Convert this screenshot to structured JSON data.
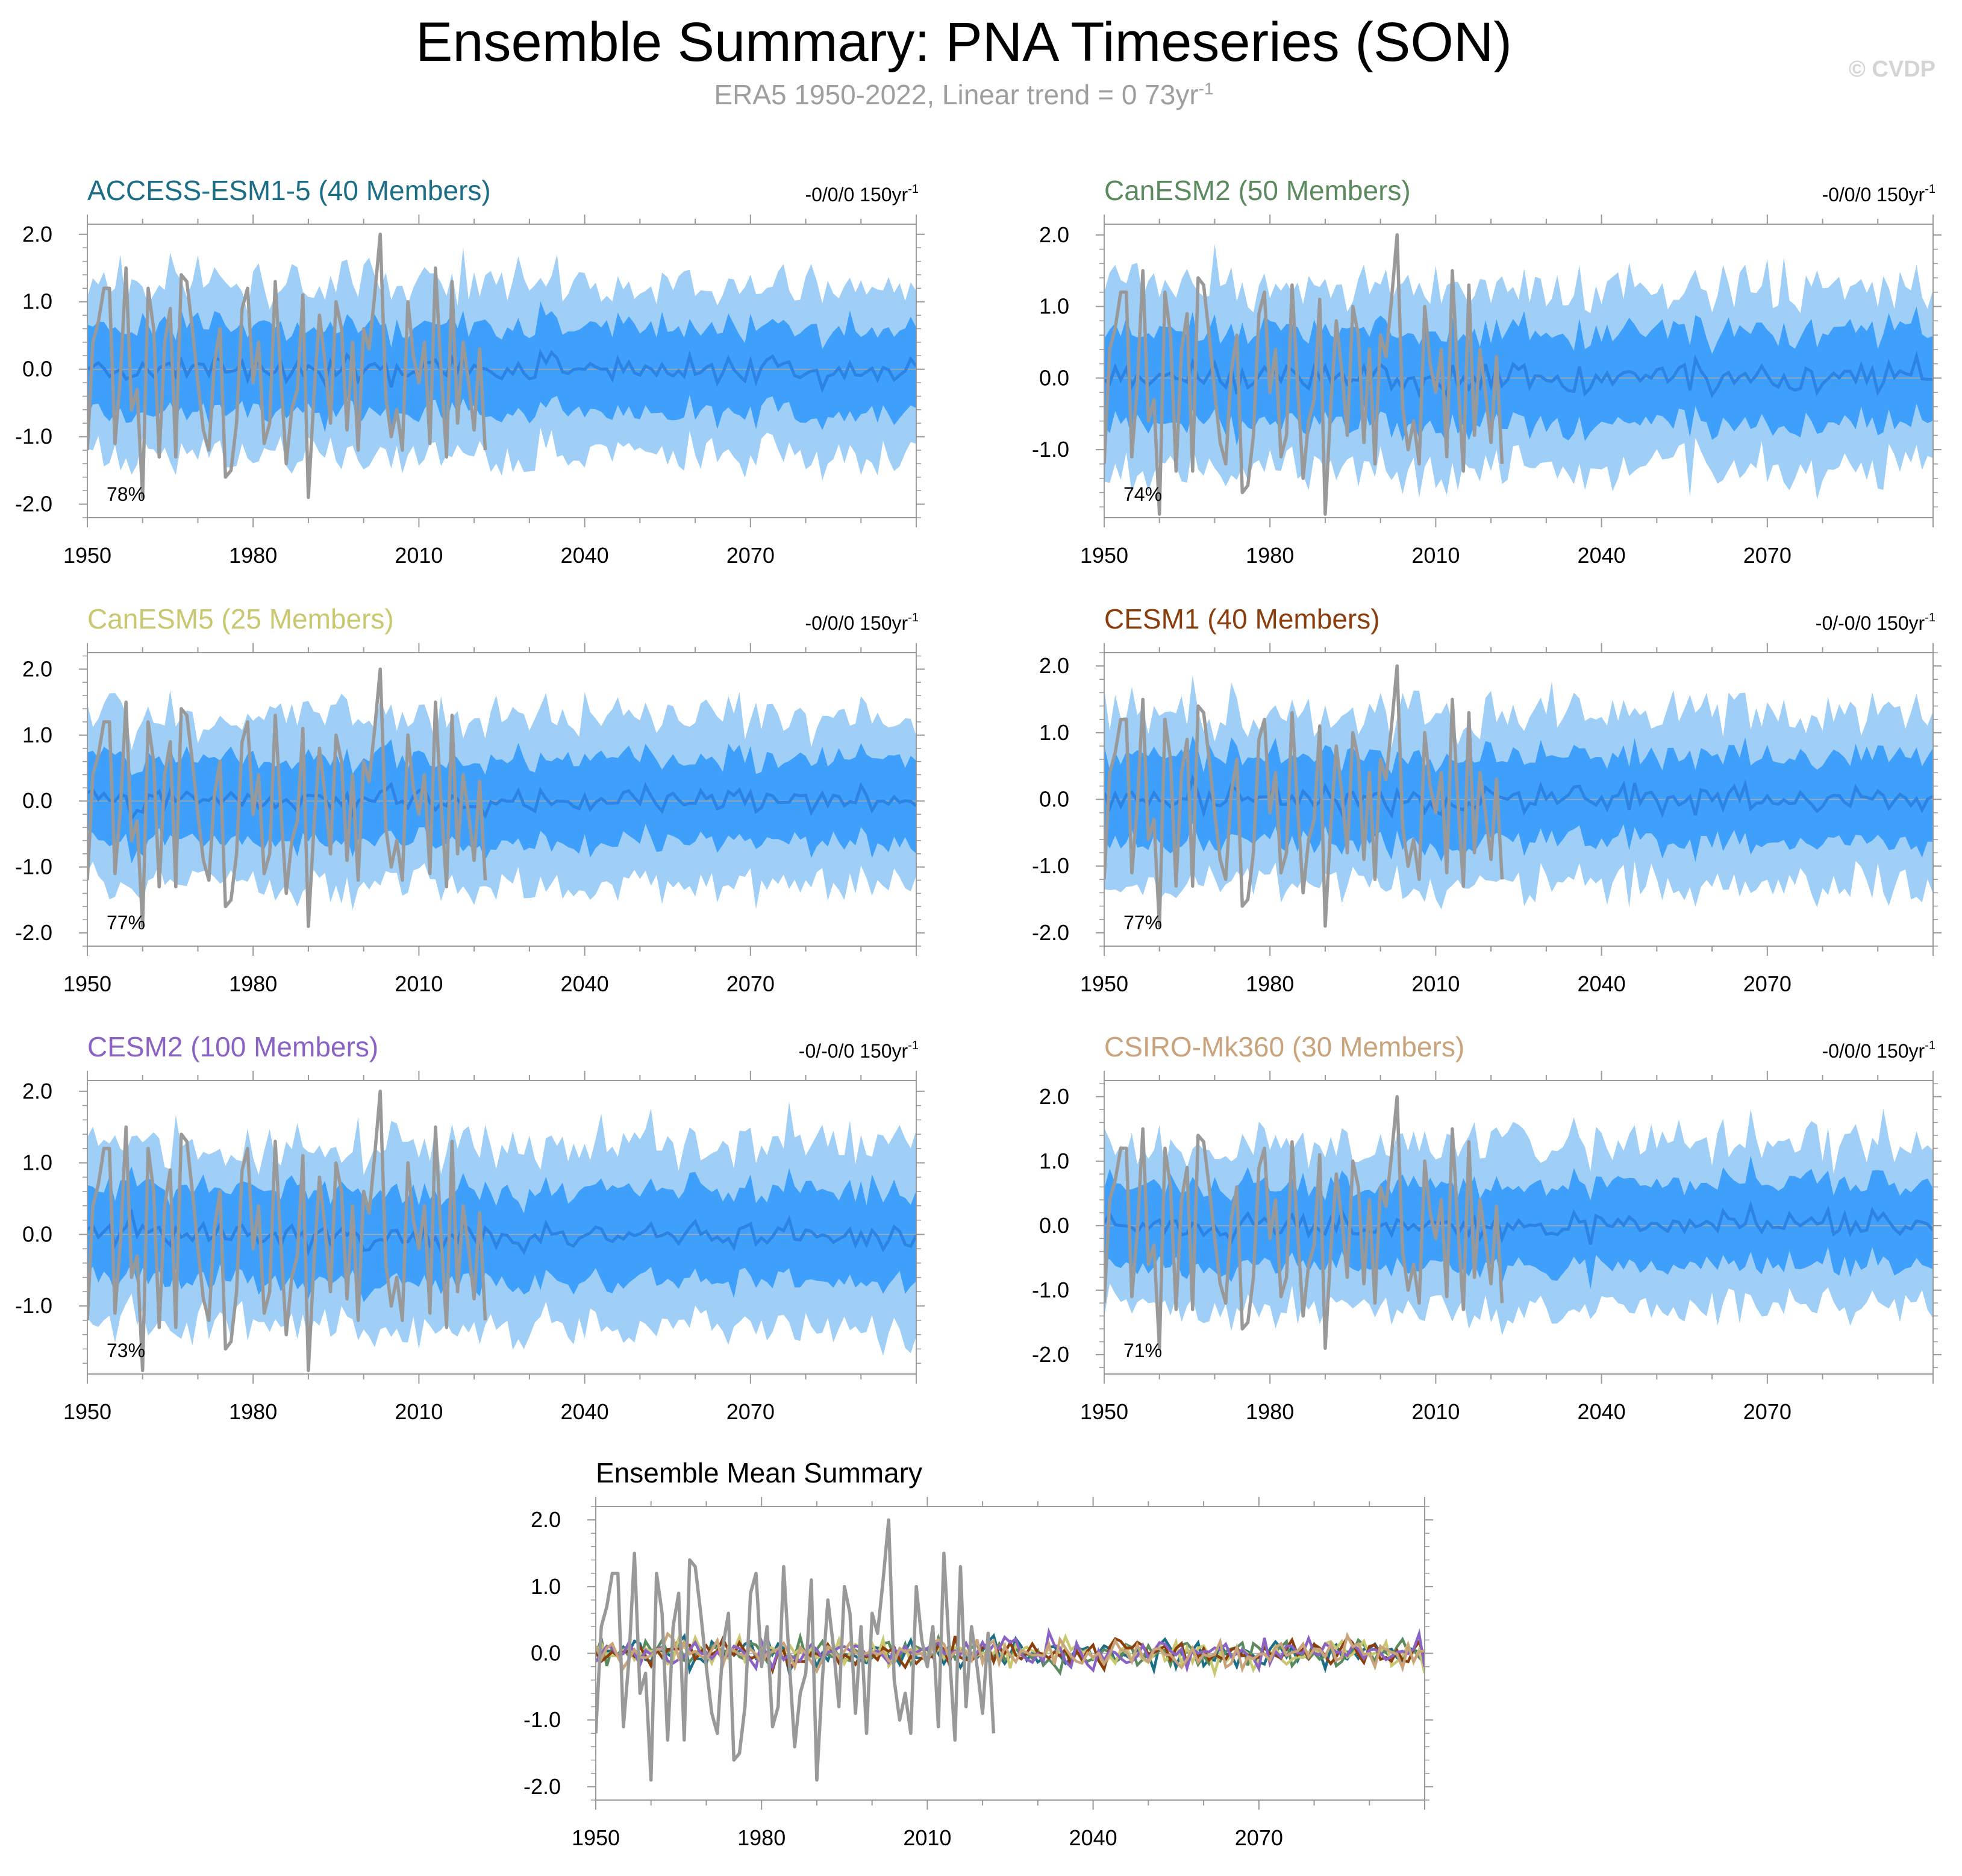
{
  "header": {
    "title": "Ensemble Summary: PNA Timeseries (SON)",
    "subtitle_main": "ERA5 1950-2022, Linear trend = 0 73yr",
    "subtitle_sup": "-1",
    "watermark": "© CVDP"
  },
  "colors": {
    "light_band": "#9fcff7",
    "dark_band": "#3fa0fb",
    "ensemble_mean": "#2c83e3",
    "observations": "#999999"
  },
  "chart_data": [
    {
      "type": "line",
      "title": "ACCESS-ESM1-5 (40 Members)",
      "title_color": "#1b6e86",
      "trend_label": "-0/0/0 150yr",
      "trend_sup": "-1",
      "percent_label": "78%",
      "xlim": [
        1950,
        2100
      ],
      "ylim": [
        -2.2,
        2.15
      ],
      "yticks": [
        -2.0,
        -1.0,
        0.0,
        1.0,
        2.0
      ],
      "ytick_labels": [
        "-2.0",
        "-1.0",
        "0.0",
        "1.0",
        "2.0"
      ],
      "xticks": [
        1950,
        1980,
        2010,
        2040,
        2070
      ],
      "xtick_labels": [
        "1950",
        "1980",
        "2010",
        "2040",
        "2070"
      ],
      "series": [
        {
          "name": "inner range",
          "x_range": [
            1950,
            2100
          ],
          "description": "ensemble spread bands"
        },
        {
          "name": "ensemble mean",
          "values_approx": "near 0 (about -0.3 to 0.4)"
        },
        {
          "name": "ERA5",
          "x_range": [
            1950,
            2022
          ]
        }
      ]
    },
    {
      "type": "line",
      "title": "CanESM2 (50 Members)",
      "title_color": "#5b8a5e",
      "trend_label": "-0/0/0 150yr",
      "trend_sup": "-1",
      "percent_label": "74%",
      "xlim": [
        1950,
        2100
      ],
      "ylim": [
        -1.95,
        2.15
      ],
      "yticks": [
        -1.0,
        0.0,
        1.0,
        2.0
      ],
      "ytick_labels": [
        "-1.0",
        "0.0",
        "1.0",
        "2.0"
      ],
      "xticks": [
        1950,
        1980,
        2010,
        2040,
        2070
      ],
      "xtick_labels": [
        "1950",
        "1980",
        "2010",
        "2040",
        "2070"
      ]
    },
    {
      "type": "line",
      "title": "CanESM5 (25 Members)",
      "title_color": "#c9c76f",
      "trend_label": "-0/0/0 150yr",
      "trend_sup": "-1",
      "percent_label": "77%",
      "xlim": [
        1950,
        2100
      ],
      "ylim": [
        -2.2,
        2.25
      ],
      "yticks": [
        -2.0,
        -1.0,
        0.0,
        1.0,
        2.0
      ],
      "ytick_labels": [
        "-2.0",
        "-1.0",
        "0.0",
        "1.0",
        "2.0"
      ],
      "xticks": [
        1950,
        1980,
        2010,
        2040,
        2070
      ],
      "xtick_labels": [
        "1950",
        "1980",
        "2010",
        "2040",
        "2070"
      ]
    },
    {
      "type": "line",
      "title": "CESM1 (40 Members)",
      "title_color": "#8b3e0c",
      "trend_label": "-0/-0/0 150yr",
      "trend_sup": "-1",
      "percent_label": "77%",
      "xlim": [
        1950,
        2100
      ],
      "ylim": [
        -2.2,
        2.2
      ],
      "yticks": [
        -2.0,
        -1.0,
        0.0,
        1.0,
        2.0
      ],
      "ytick_labels": [
        "-2.0",
        "-1.0",
        "0.0",
        "1.0",
        "2.0"
      ],
      "xticks": [
        1950,
        1980,
        2010,
        2040,
        2070
      ],
      "xtick_labels": [
        "1950",
        "1980",
        "2010",
        "2040",
        "2070"
      ]
    },
    {
      "type": "line",
      "title": "CESM2 (100 Members)",
      "title_color": "#8a62c6",
      "trend_label": "-0/-0/0 150yr",
      "trend_sup": "-1",
      "percent_label": "73%",
      "xlim": [
        1950,
        2100
      ],
      "ylim": [
        -1.95,
        2.15
      ],
      "yticks": [
        -1.0,
        0.0,
        1.0,
        2.0
      ],
      "ytick_labels": [
        "-1.0",
        "0.0",
        "1.0",
        "2.0"
      ],
      "xticks": [
        1950,
        1980,
        2010,
        2040,
        2070
      ],
      "xtick_labels": [
        "1950",
        "1980",
        "2010",
        "2040",
        "2070"
      ]
    },
    {
      "type": "line",
      "title": "CSIRO-Mk360 (30 Members)",
      "title_color": "#c9a37a",
      "trend_label": "-0/0/0 150yr",
      "trend_sup": "-1",
      "percent_label": "71%",
      "xlim": [
        1950,
        2100
      ],
      "ylim": [
        -2.3,
        2.25
      ],
      "yticks": [
        -2.0,
        -1.0,
        0.0,
        1.0,
        2.0
      ],
      "ytick_labels": [
        "-2.0",
        "-1.0",
        "0.0",
        "1.0",
        "2.0"
      ],
      "xticks": [
        1950,
        1980,
        2010,
        2040,
        2070
      ],
      "xtick_labels": [
        "1950",
        "1980",
        "2010",
        "2040",
        "2070"
      ]
    },
    {
      "type": "line",
      "title": "Ensemble Mean Summary",
      "title_color": "#000000",
      "xlim": [
        1950,
        2100
      ],
      "ylim": [
        -2.2,
        2.2
      ],
      "yticks": [
        -2.0,
        -1.0,
        0.0,
        1.0,
        2.0
      ],
      "ytick_labels": [
        "-2.0",
        "-1.0",
        "0.0",
        "1.0",
        "2.0"
      ],
      "xticks": [
        1950,
        1980,
        2010,
        2040,
        2070
      ],
      "xtick_labels": [
        "1950",
        "1980",
        "2010",
        "2040",
        "2070"
      ],
      "series_colors": [
        "#1b6e86",
        "#5b8a5e",
        "#c9c76f",
        "#8b3e0c",
        "#8a62c6",
        "#c9a37a"
      ]
    }
  ],
  "observations_era5": {
    "name": "ERA5 PNA (SON)",
    "x": [
      1950,
      1951,
      1952,
      1953,
      1954,
      1955,
      1956,
      1957,
      1958,
      1959,
      1960,
      1961,
      1962,
      1963,
      1964,
      1965,
      1966,
      1967,
      1968,
      1969,
      1970,
      1971,
      1972,
      1973,
      1974,
      1975,
      1976,
      1977,
      1978,
      1979,
      1980,
      1981,
      1982,
      1983,
      1984,
      1985,
      1986,
      1987,
      1988,
      1989,
      1990,
      1991,
      1992,
      1993,
      1994,
      1995,
      1996,
      1997,
      1998,
      1999,
      2000,
      2001,
      2002,
      2003,
      2004,
      2005,
      2006,
      2007,
      2008,
      2009,
      2010,
      2011,
      2012,
      2013,
      2014,
      2015,
      2016,
      2017,
      2018,
      2019,
      2020,
      2021,
      2022
    ],
    "values": [
      -1.2,
      0.4,
      0.7,
      1.2,
      1.2,
      -1.1,
      -0.1,
      1.5,
      -0.6,
      -0.3,
      -1.9,
      1.2,
      0.6,
      -1.3,
      0.4,
      0.9,
      -1.3,
      1.4,
      1.3,
      0.6,
      -0.2,
      -0.9,
      -1.2,
      0.1,
      0.6,
      -1.6,
      -1.5,
      -0.8,
      0.9,
      1.2,
      -0.2,
      0.4,
      -1.1,
      -0.8,
      1.3,
      -0.1,
      -1.4,
      -0.6,
      -0.3,
      1.1,
      -1.9,
      -0.4,
      0.8,
      0.1,
      -0.8,
      1.0,
      0.6,
      -0.9,
      0.4,
      -1.2,
      0.6,
      0.3,
      1.1,
      2.0,
      -0.4,
      -1.0,
      -0.6,
      -1.2,
      1.0,
      0.2,
      -0.2,
      0.4,
      -1.1,
      1.5,
      0.0,
      -1.3,
      1.3,
      -0.8,
      0.4,
      -0.2,
      -0.9,
      0.3,
      -1.2
    ]
  }
}
